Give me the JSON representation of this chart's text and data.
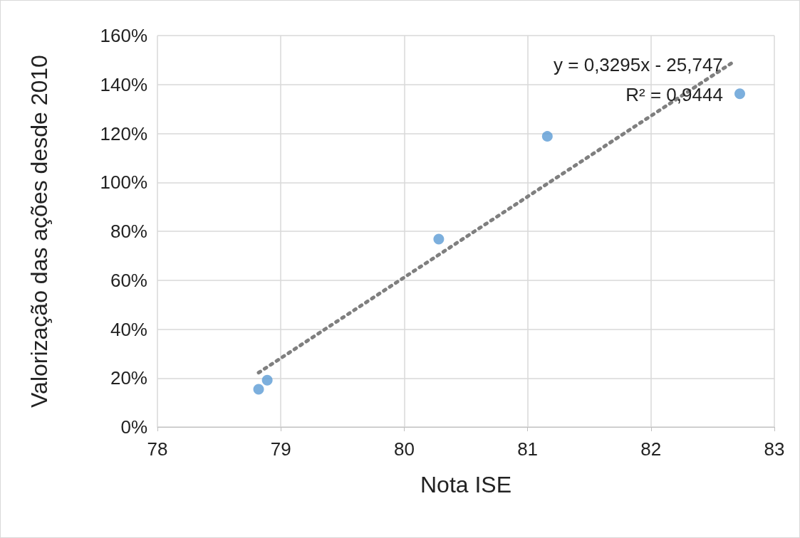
{
  "chart_data": {
    "type": "scatter",
    "xlabel": "Nota ISE",
    "ylabel": "Valorização das ações desde 2010",
    "annotations": [
      "y = 0,3295x - 25,747",
      "R² = 0,9444"
    ],
    "series": [
      {
        "color": "#5b9bd5",
        "x": [
          78.82,
          78.89,
          80.28,
          81.16,
          82.72
        ],
        "values": [
          15.4,
          19.1,
          76.8,
          118.8,
          136.2
        ],
        "marker": "circle"
      },
      {
        "type": "line",
        "color": "#7f7f7f",
        "x": [
          78.82,
          82.67
        ],
        "values": [
          22.2,
          149.3
        ],
        "line_style": "dotted",
        "marker": "none"
      }
    ],
    "xlim": [
      78,
      83
    ],
    "xticks": [
      78,
      79,
      80,
      81,
      82,
      83
    ],
    "ylim": [
      0,
      160
    ],
    "yticks": [
      {
        "value": 0,
        "label": "0%"
      },
      {
        "value": 20,
        "label": "20%"
      },
      {
        "value": 40,
        "label": "40%"
      },
      {
        "value": 60,
        "label": "60%"
      },
      {
        "value": 80,
        "label": "80%"
      },
      {
        "value": 100,
        "label": "100%"
      },
      {
        "value": 120,
        "label": "120%"
      },
      {
        "value": 140,
        "label": "140%"
      },
      {
        "value": 160,
        "label": "160%"
      }
    ],
    "grid": true
  }
}
